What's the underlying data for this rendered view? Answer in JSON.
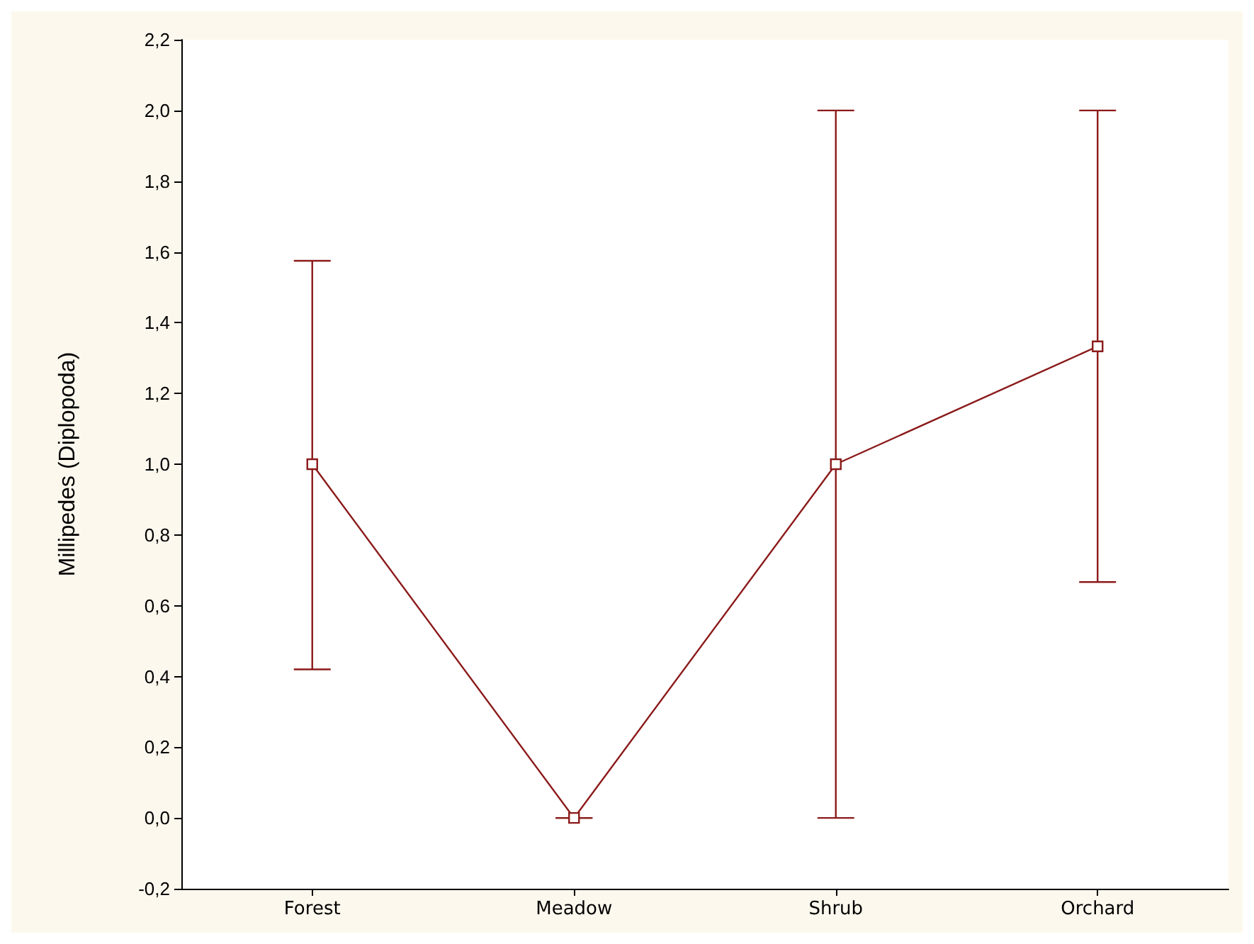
{
  "chart_data": {
    "type": "line",
    "ylabel": "Millipedes (Diplopoda)",
    "categories": [
      "Forest",
      "Meadow",
      "Shrub",
      "Orchard"
    ],
    "series": [
      {
        "color": "#8b1a1a",
        "values": [
          1.0,
          0.0,
          1.0,
          1.333
        ],
        "errors": [
          [
            0.42,
            1.575
          ],
          [
            0,
            0
          ],
          [
            0,
            2.0
          ],
          [
            0.667,
            2.0
          ]
        ]
      }
    ],
    "ylim": [
      -0.2,
      2.2
    ],
    "yticks": [
      {
        "value": -0.2,
        "label": "-0,2"
      },
      {
        "value": 0,
        "label": "0,0"
      },
      {
        "value": 0.2,
        "label": "0,2"
      },
      {
        "value": 0.4,
        "label": "0,4"
      },
      {
        "value": 0.6,
        "label": "0,6"
      },
      {
        "value": 0.8,
        "label": "0,8"
      },
      {
        "value": 1.0,
        "label": "1,0"
      },
      {
        "value": 1.2,
        "label": "1,2"
      },
      {
        "value": 1.4,
        "label": "1,4"
      },
      {
        "value": 1.6,
        "label": "1,6"
      },
      {
        "value": 1.8,
        "label": "1,8"
      },
      {
        "value": 2.0,
        "label": "2,0"
      },
      {
        "value": 2.2,
        "label": "2,2"
      }
    ],
    "grid": false,
    "marker": "square",
    "line_style": "solid"
  }
}
